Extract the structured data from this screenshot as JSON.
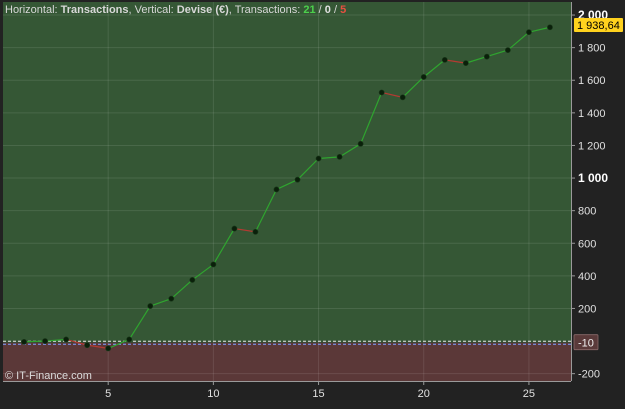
{
  "header": {
    "horizontal_label": "Horizontal: ",
    "horizontal_value": "Transactions",
    "vertical_label": ", Vertical: ",
    "vertical_value": "Devise (€)",
    "transactions_label": ", Transactions: ",
    "count_win": "21",
    "sep1": " / ",
    "count_neutral": "0",
    "sep2": " / ",
    "count_loss": "5"
  },
  "watermark": "© IT-Finance.com",
  "colors": {
    "profit_area": "#355735",
    "loss_area": "#5b3838",
    "up_segment": "#2fa52f",
    "down_segment": "#b43a32",
    "point": "#0a200a",
    "current_badge": "#ffd21e",
    "baseline_badge": "#5a3a3a",
    "win_text": "#4cd04c",
    "neutral_text": "#e0e0e0",
    "loss_text": "#e85040"
  },
  "chart_data": {
    "type": "line",
    "x": [
      1,
      2,
      3,
      4,
      5,
      6,
      7,
      8,
      9,
      10,
      11,
      12,
      13,
      14,
      15,
      16,
      17,
      18,
      19,
      20,
      21,
      22,
      23,
      24,
      25,
      26
    ],
    "y": [
      -5,
      0,
      10,
      -25,
      -45,
      10,
      215,
      260,
      375,
      470,
      690,
      670,
      930,
      990,
      1120,
      1130,
      1210,
      1525,
      1495,
      1620,
      1725,
      1705,
      1745,
      1785,
      1895,
      1925
    ],
    "xlim": [
      0,
      27
    ],
    "ylim": [
      -245,
      2080
    ],
    "x_ticks": [
      5,
      10,
      15,
      20,
      25
    ],
    "y_ticks": [
      {
        "value": 2000,
        "label": "2 000",
        "major": true
      },
      {
        "value": 1800,
        "label": "1 800",
        "major": false
      },
      {
        "value": 1600,
        "label": "1 600",
        "major": false
      },
      {
        "value": 1400,
        "label": "1 400",
        "major": false
      },
      {
        "value": 1200,
        "label": "1 200",
        "major": false
      },
      {
        "value": 1000,
        "label": "1 000",
        "major": true
      },
      {
        "value": 800,
        "label": "800",
        "major": false
      },
      {
        "value": 600,
        "label": "600",
        "major": false
      },
      {
        "value": 400,
        "label": "400",
        "major": false
      },
      {
        "value": 200,
        "label": "200",
        "major": false
      },
      {
        "value": -200,
        "label": "-200",
        "major": false
      }
    ],
    "baseline_value": -10,
    "baseline_label": "-10",
    "current_value": 1938.64,
    "current_label": "1 938,64",
    "grid": true
  }
}
